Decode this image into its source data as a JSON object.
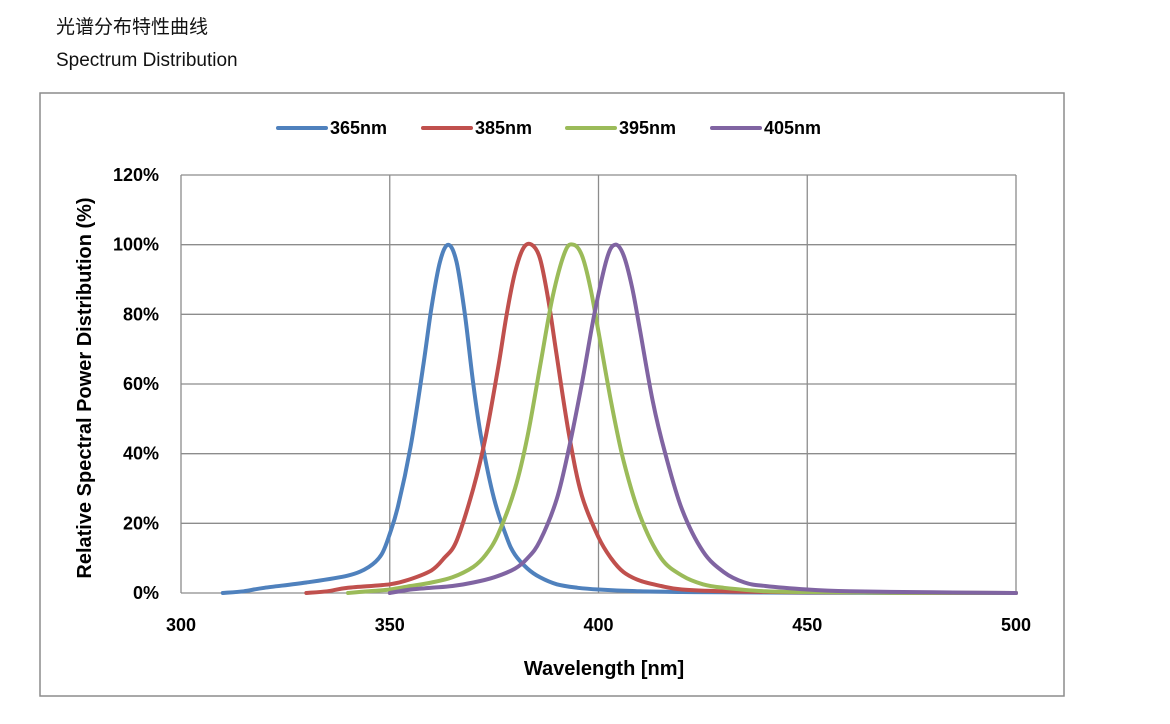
{
  "header": {
    "title_cn": "光谱分布特性曲线",
    "title_en": "Spectrum Distribution"
  },
  "chart_data": {
    "type": "line",
    "xlabel": "Wavelength  [nm]",
    "ylabel": "Relative Spectral Power Distribution (%)",
    "xlim": [
      300,
      500
    ],
    "ylim": [
      0,
      120
    ],
    "x_ticks": [
      300,
      350,
      400,
      450,
      500
    ],
    "y_ticks": [
      0,
      20,
      40,
      60,
      80,
      100,
      120
    ],
    "y_tick_labels": [
      "0%",
      "20%",
      "40%",
      "60%",
      "80%",
      "100%",
      "120%"
    ],
    "grid": true,
    "legend_position": "top",
    "series": [
      {
        "name": "365nm",
        "color": "#4f81bd",
        "x": [
          310,
          315,
          320,
          330,
          340,
          345,
          348,
          350,
          352,
          355,
          358,
          360,
          362,
          364,
          366,
          368,
          370,
          372,
          375,
          378,
          380,
          383,
          386,
          390,
          395,
          400,
          410,
          420,
          430,
          450,
          500
        ],
        "y": [
          0,
          0.5,
          1.5,
          3,
          5,
          7.5,
          11,
          17,
          25,
          42,
          65,
          82,
          95,
          100,
          95,
          80,
          60,
          44,
          27,
          16,
          11,
          7,
          4.5,
          2.5,
          1.5,
          1,
          0.5,
          0.3,
          0.2,
          0.1,
          0
        ]
      },
      {
        "name": "385nm",
        "color": "#c0504d",
        "x": [
          330,
          335,
          340,
          350,
          355,
          360,
          363,
          366,
          370,
          373,
          376,
          378,
          380,
          382,
          384,
          386,
          388,
          390,
          393,
          396,
          400,
          403,
          406,
          410,
          415,
          420,
          430,
          450,
          500
        ],
        "y": [
          0,
          0.5,
          1.5,
          2.5,
          4,
          6.5,
          10,
          15,
          30,
          45,
          65,
          80,
          92,
          99,
          100,
          96,
          84,
          68,
          45,
          28,
          16,
          10,
          6,
          3.5,
          2,
          1,
          0.5,
          0.2,
          0
        ]
      },
      {
        "name": "395nm",
        "color": "#9bbb59",
        "x": [
          340,
          345,
          350,
          355,
          360,
          365,
          370,
          373,
          376,
          380,
          383,
          386,
          389,
          392,
          394,
          396,
          398,
          400,
          403,
          406,
          410,
          415,
          420,
          425,
          430,
          440,
          450,
          470,
          500
        ],
        "y": [
          0,
          0.5,
          1,
          2,
          3,
          4.5,
          7.5,
          11,
          17,
          30,
          45,
          65,
          85,
          98,
          100,
          97,
          88,
          75,
          55,
          38,
          22,
          10,
          5,
          2.5,
          1.5,
          0.5,
          0.3,
          0.1,
          0
        ]
      },
      {
        "name": "405nm",
        "color": "#8064a2",
        "x": [
          350,
          355,
          360,
          365,
          370,
          375,
          380,
          383,
          386,
          390,
          393,
          396,
          399,
          402,
          404,
          406,
          408,
          410,
          413,
          416,
          420,
          425,
          430,
          435,
          440,
          450,
          460,
          480,
          500
        ],
        "y": [
          0,
          1,
          1.5,
          2,
          3,
          4.5,
          7,
          10,
          15,
          27,
          42,
          60,
          80,
          96,
          100,
          97,
          88,
          75,
          55,
          40,
          24,
          12,
          6,
          3,
          2,
          1,
          0.5,
          0.2,
          0
        ]
      }
    ]
  }
}
